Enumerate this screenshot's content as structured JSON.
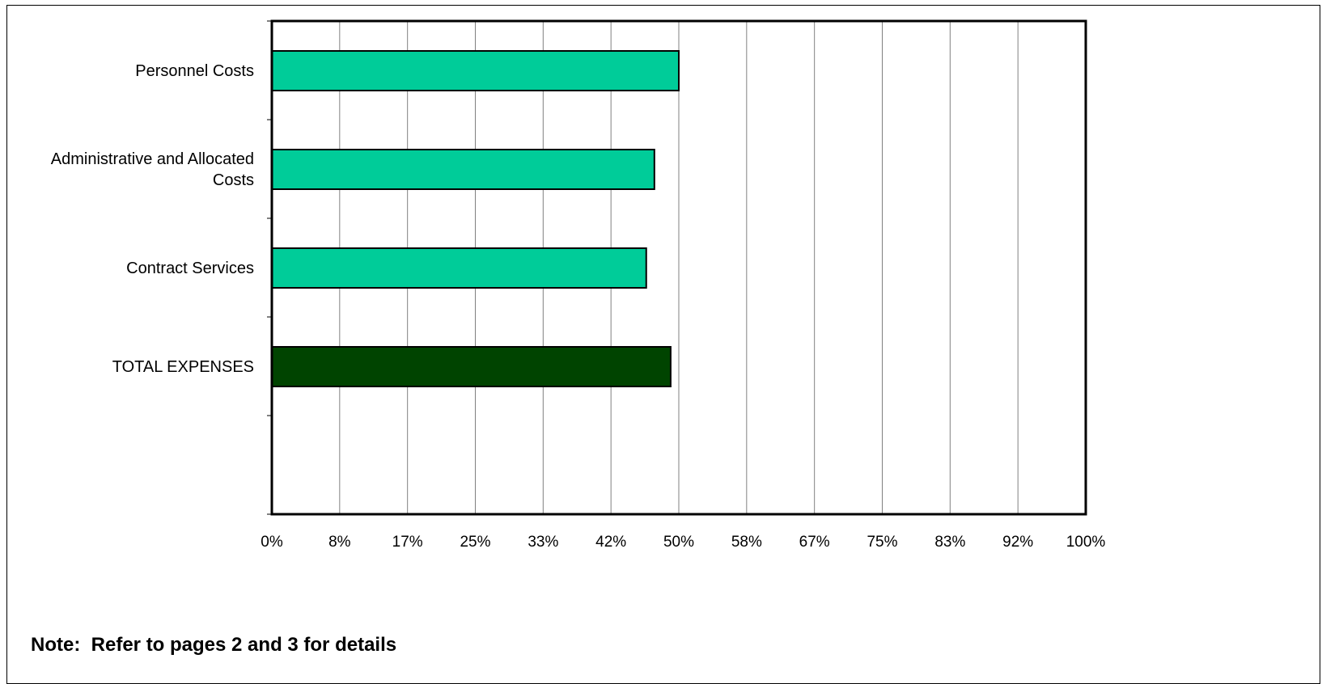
{
  "chart_data": {
    "type": "bar",
    "orientation": "horizontal",
    "categories": [
      "Personnel Costs",
      "Administrative and Allocated Costs",
      "Contract Services",
      "TOTAL EXPENSES"
    ],
    "category_lines": [
      [
        "Personnel Costs"
      ],
      [
        "Administrative and Allocated",
        "Costs"
      ],
      [
        "Contract Services"
      ],
      [
        "TOTAL EXPENSES"
      ]
    ],
    "values": [
      50,
      47,
      46,
      49
    ],
    "value_unit": "%",
    "xlim": [
      0,
      100
    ],
    "x_ticks": [
      0,
      8.333,
      16.667,
      25,
      33.333,
      41.667,
      50,
      58.333,
      66.667,
      75,
      83.333,
      91.667,
      100
    ],
    "x_tick_labels": [
      "0%",
      "8%",
      "17%",
      "25%",
      "33%",
      "42%",
      "50%",
      "58%",
      "67%",
      "75%",
      "83%",
      "92%",
      "100%"
    ],
    "grid": "vertical",
    "bar_colors": [
      "#00CC99",
      "#00CC99",
      "#00CC99",
      "#004400"
    ],
    "title": "",
    "xlabel": "",
    "ylabel": ""
  },
  "note": "Note:  Refer to pages 2 and 3 for details"
}
